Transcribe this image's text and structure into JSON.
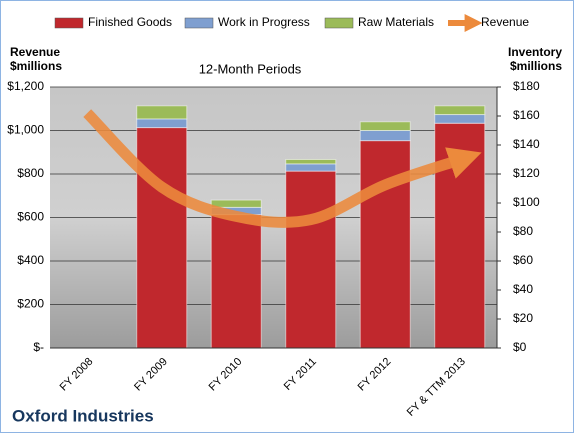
{
  "chart_data": {
    "type": "bar",
    "title": "12-Month Periods",
    "footer": "Oxford Industries",
    "ylabel": [
      "Revenue",
      "$millions"
    ],
    "y2label": [
      "Inventory",
      "$millions"
    ],
    "categories": [
      "FY 2008",
      "FY 2009",
      "FY 2010",
      "FY 2011",
      "FY 2012",
      "FY & TTM 2013"
    ],
    "ylim": [
      0,
      1200
    ],
    "yticks": [
      {
        "value": 0,
        "label": "$-"
      },
      {
        "value": 200,
        "label": "$200"
      },
      {
        "value": 400,
        "label": "$400"
      },
      {
        "value": 600,
        "label": "$600"
      },
      {
        "value": 800,
        "label": "$800"
      },
      {
        "value": 1000,
        "label": "$1,000"
      },
      {
        "value": 1200,
        "label": "$1,200"
      }
    ],
    "y2lim": [
      0,
      180
    ],
    "y2ticks": [
      {
        "value": 0,
        "label": "$0"
      },
      {
        "value": 20,
        "label": "$20"
      },
      {
        "value": 40,
        "label": "$40"
      },
      {
        "value": 60,
        "label": "$60"
      },
      {
        "value": 80,
        "label": "$80"
      },
      {
        "value": 100,
        "label": "$100"
      },
      {
        "value": 120,
        "label": "$120"
      },
      {
        "value": 140,
        "label": "$140"
      },
      {
        "value": 160,
        "label": "$160"
      },
      {
        "value": 180,
        "label": "$180"
      }
    ],
    "grid": true,
    "stacked": true,
    "series": [
      {
        "name": "Finished Goods",
        "type": "bar",
        "axis": "y2",
        "color": "#c0282d",
        "values": [
          null,
          152,
          92,
          122,
          143,
          155
        ]
      },
      {
        "name": "Work in Progress",
        "type": "bar",
        "axis": "y2",
        "color": "#7f9fd0",
        "values": [
          null,
          6,
          5,
          5,
          7,
          6
        ]
      },
      {
        "name": "Raw Materials",
        "type": "bar",
        "axis": "y2",
        "color": "#9bbb59",
        "values": [
          null,
          9,
          5,
          3,
          6,
          6
        ]
      },
      {
        "name": "Revenue",
        "type": "line",
        "color": "#ec8a3c",
        "values": [
          1080,
          740,
          605,
          590,
          750,
          865
        ]
      }
    ]
  }
}
